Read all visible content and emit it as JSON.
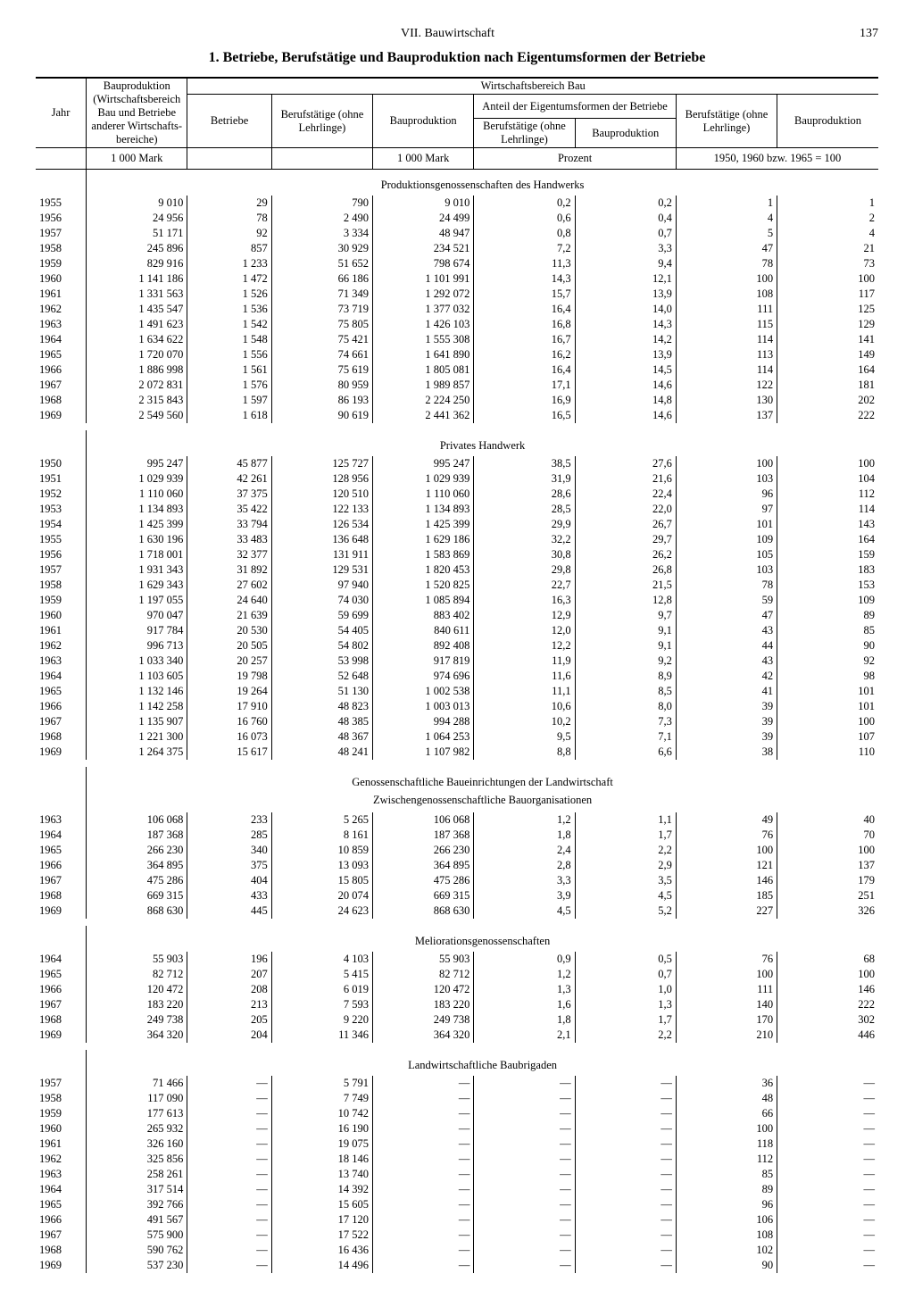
{
  "header": {
    "chapter": "VII. Bauwirtschaft",
    "page": "137"
  },
  "title": "1. Betriebe, Berufstätige und Bauproduktion nach Eigentumsformen der Betriebe",
  "columns": {
    "jahr": "Jahr",
    "bauprod_all": "Bauproduktion (Wirtschafts­bereich Bau und Betriebe anderer Wirtschafts­bereiche)",
    "wirtbereich": "Wirtschaftsbereich Bau",
    "betriebe": "Betriebe",
    "beruf_ohne": "Berufstätige (ohne Lehrlinge)",
    "bauprod": "Bau­produktion",
    "anteil": "Anteil der Eigentumsformen der Betriebe",
    "anteil_beruf": "Berufstätige (ohne Lehrlinge)",
    "anteil_prod": "Bau­produktion",
    "idx_beruf": "Berufstätige (ohne Lehrlinge)",
    "idx_prod": "Bau­produktion"
  },
  "units": {
    "u1": "1 000 Mark",
    "u2": "1 000 Mark",
    "u3": "Prozent",
    "u4": "1950, 1960 bzw. 1965 = 100"
  },
  "sections": [
    {
      "title": "Produktionsgenossenschaften des Handwerks",
      "rows": [
        [
          "1955",
          "9 010",
          "29",
          "790",
          "9 010",
          "0,2",
          "0,2",
          "1",
          "1"
        ],
        [
          "1956",
          "24 956",
          "78",
          "2 490",
          "24 499",
          "0,6",
          "0,4",
          "4",
          "2"
        ],
        [
          "1957",
          "51 171",
          "92",
          "3 334",
          "48 947",
          "0,8",
          "0,7",
          "5",
          "4"
        ],
        [
          "1958",
          "245 896",
          "857",
          "30 929",
          "234 521",
          "7,2",
          "3,3",
          "47",
          "21"
        ],
        [
          "1959",
          "829 916",
          "1 233",
          "51 652",
          "798 674",
          "11,3",
          "9,4",
          "78",
          "73"
        ],
        [
          "1960",
          "1 141 186",
          "1 472",
          "66 186",
          "1 101 991",
          "14,3",
          "12,1",
          "100",
          "100"
        ],
        [
          "1961",
          "1 331 563",
          "1 526",
          "71 349",
          "1 292 072",
          "15,7",
          "13,9",
          "108",
          "117"
        ],
        [
          "1962",
          "1 435 547",
          "1 536",
          "73 719",
          "1 377 032",
          "16,4",
          "14,0",
          "111",
          "125"
        ],
        [
          "1963",
          "1 491 623",
          "1 542",
          "75 805",
          "1 426 103",
          "16,8",
          "14,3",
          "115",
          "129"
        ],
        [
          "1964",
          "1 634 622",
          "1 548",
          "75 421",
          "1 555 308",
          "16,7",
          "14,2",
          "114",
          "141"
        ],
        [
          "1965",
          "1 720 070",
          "1 556",
          "74 661",
          "1 641 890",
          "16,2",
          "13,9",
          "113",
          "149"
        ],
        [
          "1966",
          "1 886 998",
          "1 561",
          "75 619",
          "1 805 081",
          "16,4",
          "14,5",
          "114",
          "164"
        ],
        [
          "1967",
          "2 072 831",
          "1 576",
          "80 959",
          "1 989 857",
          "17,1",
          "14,6",
          "122",
          "181"
        ],
        [
          "1968",
          "2 315 843",
          "1 597",
          "86 193",
          "2 224 250",
          "16,9",
          "14,8",
          "130",
          "202"
        ],
        [
          "1969",
          "2 549 560",
          "1 618",
          "90 619",
          "2 441 362",
          "16,5",
          "14,6",
          "137",
          "222"
        ]
      ]
    },
    {
      "title": "Privates Handwerk",
      "rows": [
        [
          "1950",
          "995 247",
          "45 877",
          "125 727",
          "995 247",
          "38,5",
          "27,6",
          "100",
          "100"
        ],
        [
          "1951",
          "1 029 939",
          "42 261",
          "128 956",
          "1 029 939",
          "31,9",
          "21,6",
          "103",
          "104"
        ],
        [
          "1952",
          "1 110 060",
          "37 375",
          "120 510",
          "1 110 060",
          "28,6",
          "22,4",
          "96",
          "112"
        ],
        [
          "1953",
          "1 134 893",
          "35 422",
          "122 133",
          "1 134 893",
          "28,5",
          "22,0",
          "97",
          "114"
        ],
        [
          "1954",
          "1 425 399",
          "33 794",
          "126 534",
          "1 425 399",
          "29,9",
          "26,7",
          "101",
          "143"
        ],
        [
          "1955",
          "1 630 196",
          "33 483",
          "136 648",
          "1 629 186",
          "32,2",
          "29,7",
          "109",
          "164"
        ],
        [
          "1956",
          "1 718 001",
          "32 377",
          "131 911",
          "1 583 869",
          "30,8",
          "26,2",
          "105",
          "159"
        ],
        [
          "1957",
          "1 931 343",
          "31 892",
          "129 531",
          "1 820 453",
          "29,8",
          "26,8",
          "103",
          "183"
        ],
        [
          "1958",
          "1 629 343",
          "27 602",
          "97 940",
          "1 520 825",
          "22,7",
          "21,5",
          "78",
          "153"
        ],
        [
          "1959",
          "1 197 055",
          "24 640",
          "74 030",
          "1 085 894",
          "16,3",
          "12,8",
          "59",
          "109"
        ],
        [
          "1960",
          "970 047",
          "21 639",
          "59 699",
          "883 402",
          "12,9",
          "9,7",
          "47",
          "89"
        ],
        [
          "1961",
          "917 784",
          "20 530",
          "54 405",
          "840 611",
          "12,0",
          "9,1",
          "43",
          "85"
        ],
        [
          "1962",
          "996 713",
          "20 505",
          "54 802",
          "892 408",
          "12,2",
          "9,1",
          "44",
          "90"
        ],
        [
          "1963",
          "1 033 340",
          "20 257",
          "53 998",
          "917 819",
          "11,9",
          "9,2",
          "43",
          "92"
        ],
        [
          "1964",
          "1 103 605",
          "19 798",
          "52 648",
          "974 696",
          "11,6",
          "8,9",
          "42",
          "98"
        ],
        [
          "1965",
          "1 132 146",
          "19 264",
          "51 130",
          "1 002 538",
          "11,1",
          "8,5",
          "41",
          "101"
        ],
        [
          "1966",
          "1 142 258",
          "17 910",
          "48 823",
          "1 003 013",
          "10,6",
          "8,0",
          "39",
          "101"
        ],
        [
          "1967",
          "1 135 907",
          "16 760",
          "48 385",
          "994 288",
          "10,2",
          "7,3",
          "39",
          "100"
        ],
        [
          "1968",
          "1 221 300",
          "16 073",
          "48 367",
          "1 064 253",
          "9,5",
          "7,1",
          "39",
          "107"
        ],
        [
          "1969",
          "1 264 375",
          "15 617",
          "48 241",
          "1 107 982",
          "8,8",
          "6,6",
          "38",
          "110"
        ]
      ]
    },
    {
      "title": "Genossenschaftliche Baueinrichtungen der Landwirtschaft",
      "subtitle": "Zwischengenossenschaftliche Bauorganisationen",
      "rows": [
        [
          "1963",
          "106 068",
          "233",
          "5 265",
          "106 068",
          "1,2",
          "1,1",
          "49",
          "40"
        ],
        [
          "1964",
          "187 368",
          "285",
          "8 161",
          "187 368",
          "1,8",
          "1,7",
          "76",
          "70"
        ],
        [
          "1965",
          "266 230",
          "340",
          "10 859",
          "266 230",
          "2,4",
          "2,2",
          "100",
          "100"
        ],
        [
          "1966",
          "364 895",
          "375",
          "13 093",
          "364 895",
          "2,8",
          "2,9",
          "121",
          "137"
        ],
        [
          "1967",
          "475 286",
          "404",
          "15 805",
          "475 286",
          "3,3",
          "3,5",
          "146",
          "179"
        ],
        [
          "1968",
          "669 315",
          "433",
          "20 074",
          "669 315",
          "3,9",
          "4,5",
          "185",
          "251"
        ],
        [
          "1969",
          "868 630",
          "445",
          "24 623",
          "868 630",
          "4,5",
          "5,2",
          "227",
          "326"
        ]
      ]
    },
    {
      "title": "Meliorationsgenossenschaften",
      "rows": [
        [
          "1964",
          "55 903",
          "196",
          "4 103",
          "55 903",
          "0,9",
          "0,5",
          "76",
          "68"
        ],
        [
          "1965",
          "82 712",
          "207",
          "5 415",
          "82 712",
          "1,2",
          "0,7",
          "100",
          "100"
        ],
        [
          "1966",
          "120 472",
          "208",
          "6 019",
          "120 472",
          "1,3",
          "1,0",
          "111",
          "146"
        ],
        [
          "1967",
          "183 220",
          "213",
          "7 593",
          "183 220",
          "1,6",
          "1,3",
          "140",
          "222"
        ],
        [
          "1968",
          "249 738",
          "205",
          "9 220",
          "249 738",
          "1,8",
          "1,7",
          "170",
          "302"
        ],
        [
          "1969",
          "364 320",
          "204",
          "11 346",
          "364 320",
          "2,1",
          "2,2",
          "210",
          "446"
        ]
      ]
    },
    {
      "title": "Landwirtschaftliche Baubrigaden",
      "rows": [
        [
          "1957",
          "71 466",
          "—",
          "5 791",
          "—",
          "—",
          "—",
          "36",
          "—"
        ],
        [
          "1958",
          "117 090",
          "—",
          "7 749",
          "—",
          "—",
          "—",
          "48",
          "—"
        ],
        [
          "1959",
          "177 613",
          "—",
          "10 742",
          "—",
          "—",
          "—",
          "66",
          "—"
        ],
        [
          "1960",
          "265 932",
          "—",
          "16 190",
          "—",
          "—",
          "—",
          "100",
          "—"
        ],
        [
          "1961",
          "326 160",
          "—",
          "19 075",
          "—",
          "—",
          "—",
          "118",
          "—"
        ],
        [
          "1962",
          "325 856",
          "—",
          "18 146",
          "—",
          "—",
          "—",
          "112",
          "—"
        ],
        [
          "1963",
          "258 261",
          "—",
          "13 740",
          "—",
          "—",
          "—",
          "85",
          "—"
        ],
        [
          "1964",
          "317 514",
          "—",
          "14 392",
          "—",
          "—",
          "—",
          "89",
          "—"
        ],
        [
          "1965",
          "392 766",
          "—",
          "15 605",
          "—",
          "—",
          "—",
          "96",
          "—"
        ],
        [
          "1966",
          "491 567",
          "—",
          "17 120",
          "—",
          "—",
          "—",
          "106",
          "—"
        ],
        [
          "1967",
          "575 900",
          "—",
          "17 522",
          "—",
          "—",
          "—",
          "108",
          "—"
        ],
        [
          "1968",
          "590 762",
          "—",
          "16 436",
          "—",
          "—",
          "—",
          "102",
          "—"
        ],
        [
          "1969",
          "537 230",
          "—",
          "14 496",
          "—",
          "—",
          "—",
          "90",
          "—"
        ]
      ]
    }
  ]
}
